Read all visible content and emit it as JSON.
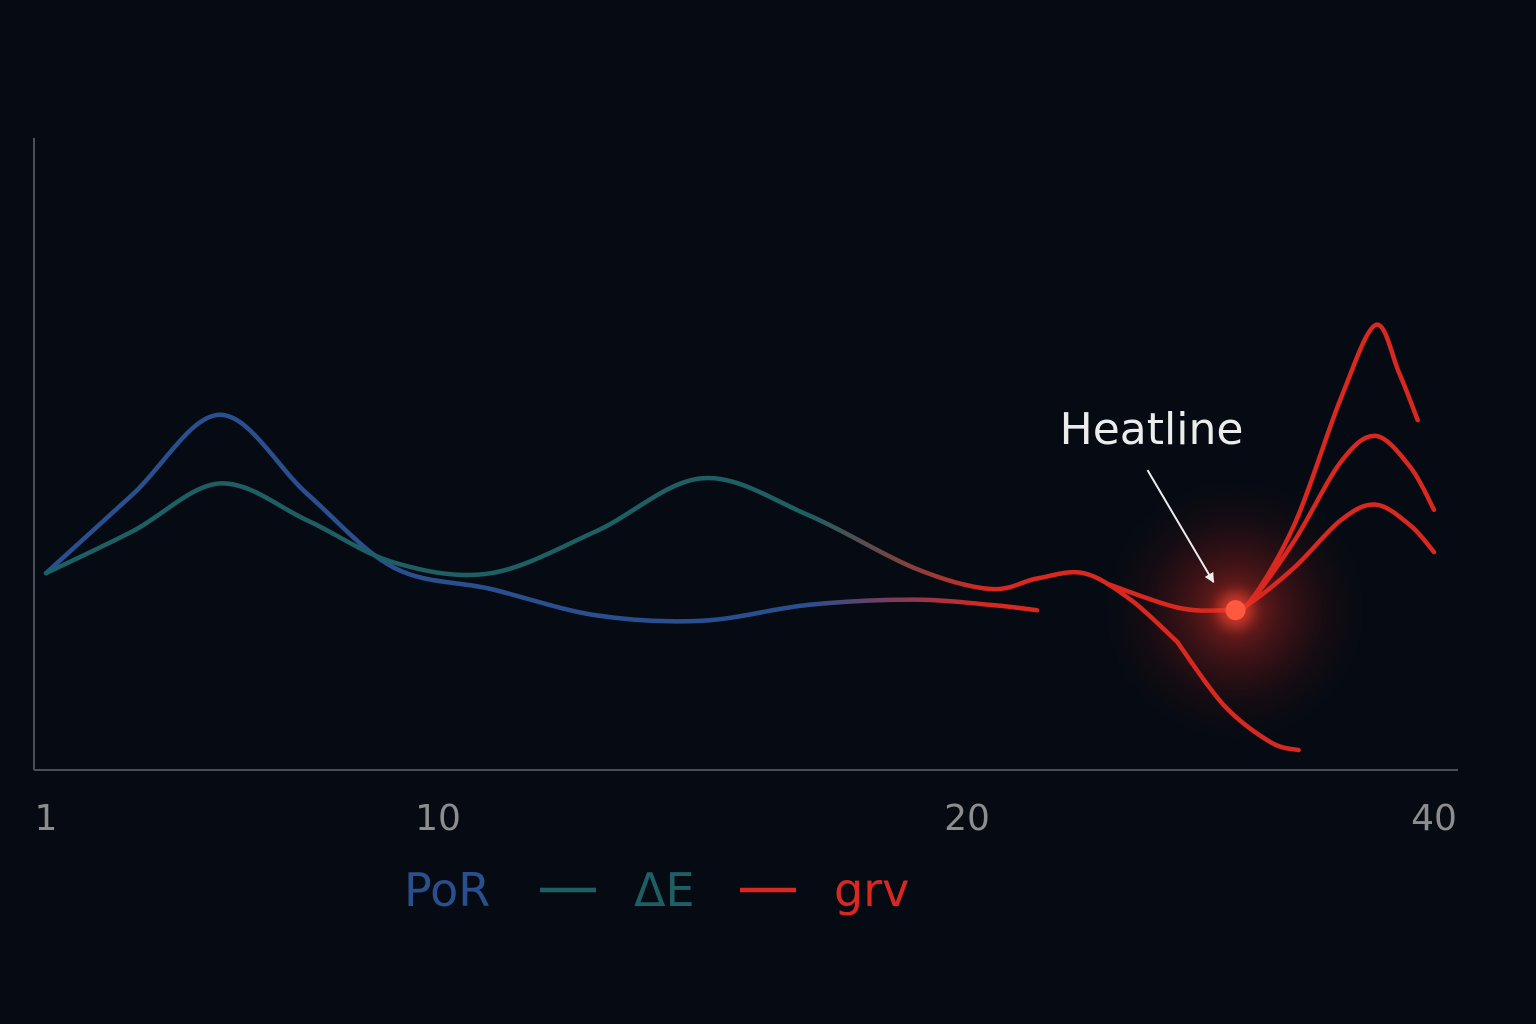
{
  "colors": {
    "background": "#060b13",
    "axis": "#4a4e56",
    "tick_label": "#8d8d90",
    "annotation": "#ececec",
    "por": "#2a4f8f",
    "delta_e": "#1d5f62",
    "grv": "#d8281f"
  },
  "chart_data": {
    "type": "line",
    "xlim": [
      1,
      40
    ],
    "ylim": [
      0,
      100
    ],
    "x_ticks": [
      1,
      10,
      20,
      40
    ],
    "x_tick_labels": [
      "1",
      "10",
      "20",
      "40"
    ],
    "grid": false,
    "legend_position": "bottom",
    "legend": [
      {
        "label": "PoR",
        "color": "#2a4f8f",
        "swatch": false
      },
      {
        "label": "ΔE",
        "color": "#1d5f62",
        "swatch": true
      },
      {
        "label": "grv",
        "color": "#d8281f",
        "swatch": true
      }
    ],
    "series": [
      {
        "name": "PoR",
        "color": "#2a4f8f",
        "points": [
          [
            1,
            35
          ],
          [
            3,
            50
          ],
          [
            5,
            65
          ],
          [
            7,
            50
          ],
          [
            9,
            36
          ],
          [
            11,
            32
          ],
          [
            13,
            27
          ],
          [
            15,
            26
          ],
          [
            17,
            29
          ],
          [
            19,
            30
          ],
          [
            21,
            29
          ],
          [
            23,
            28
          ]
        ],
        "fade_into": "grv"
      },
      {
        "name": "ΔE",
        "color": "#1d5f62",
        "points": [
          [
            1,
            35
          ],
          [
            3,
            43
          ],
          [
            5,
            52
          ],
          [
            7,
            45
          ],
          [
            9,
            37
          ],
          [
            11,
            35
          ],
          [
            13,
            43
          ],
          [
            15,
            53
          ],
          [
            17,
            46
          ],
          [
            19,
            36
          ],
          [
            21,
            32
          ],
          [
            23,
            34
          ],
          [
            25,
            35
          ],
          [
            27,
            30
          ],
          [
            29,
            22
          ]
        ],
        "fade_into": "grv"
      },
      {
        "name": "grv",
        "color": "#d8281f",
        "points": [
          [
            29,
            22
          ],
          [
            31,
            10
          ],
          [
            33,
            3
          ],
          [
            34.2,
            1.5
          ]
        ]
      },
      {
        "name": "grv",
        "color": "#d8281f",
        "points": [
          [
            26,
            33
          ],
          [
            29,
            28.5
          ],
          [
            31,
            28
          ],
          [
            32,
            29
          ],
          [
            34,
            44
          ],
          [
            36,
            68
          ],
          [
            37.5,
            82
          ],
          [
            38.5,
            73
          ],
          [
            39.3,
            64
          ]
        ]
      },
      {
        "name": "grv",
        "color": "#d8281f",
        "points": [
          [
            31,
            28
          ],
          [
            32,
            29
          ],
          [
            34,
            41
          ],
          [
            36,
            56
          ],
          [
            37.5,
            61
          ],
          [
            39,
            55
          ],
          [
            40,
            47
          ]
        ]
      },
      {
        "name": "grv",
        "color": "#d8281f",
        "points": [
          [
            31,
            28
          ],
          [
            32,
            29
          ],
          [
            34,
            36
          ],
          [
            36,
            45
          ],
          [
            37.5,
            48
          ],
          [
            39,
            44
          ],
          [
            40,
            39
          ]
        ]
      }
    ],
    "annotations": [
      {
        "text": "Heatline",
        "x": 31.5,
        "y": 28,
        "marker": "glowing-dot",
        "arrow": true
      }
    ]
  }
}
